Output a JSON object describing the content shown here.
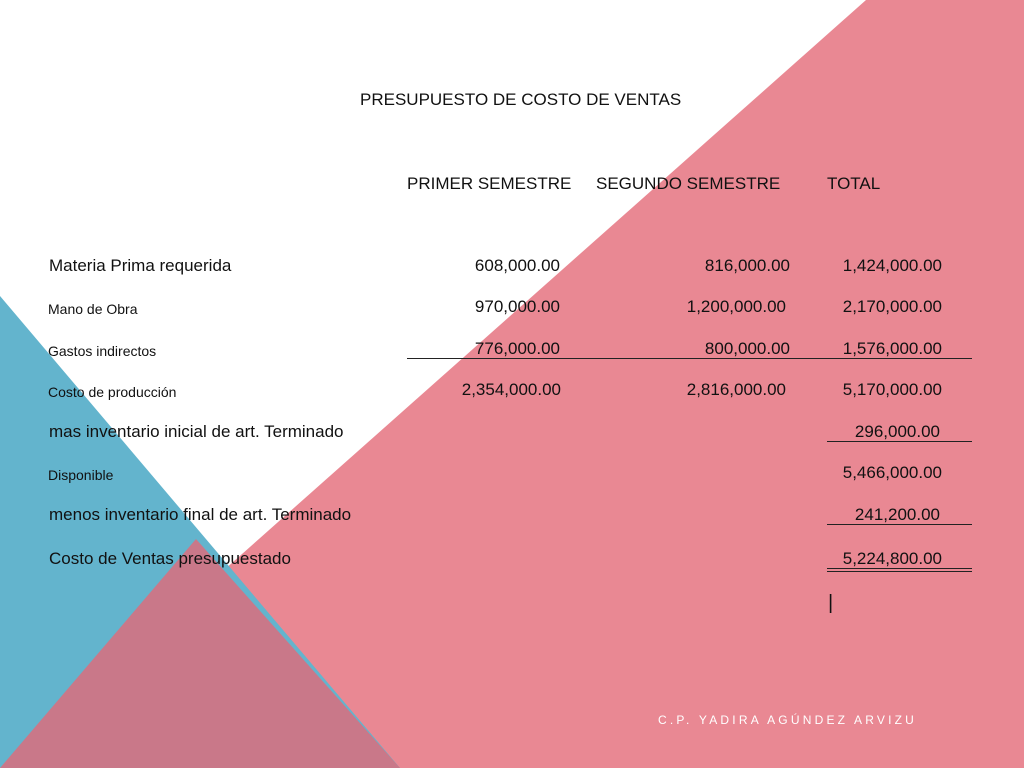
{
  "slide": {
    "title": "PRESUPUESTO DE COSTO DE VENTAS",
    "columns": [
      "PRIMER SEMESTRE",
      "SEGUNDO SEMESTRE",
      "TOTAL"
    ],
    "rows": [
      {
        "label": "Materia Prima requerida",
        "v1": "608,000.00",
        "v2": "816,000.00",
        "total": "1,424,000.00"
      },
      {
        "label": "Mano de Obra",
        "v1": "970,000.00",
        "v2": "1,200,000.00",
        "total": "2,170,000.00"
      },
      {
        "label": "Gastos indirectos",
        "v1": "776,000.00",
        "v2": "800,000.00",
        "total": "1,576,000.00"
      },
      {
        "label": "Costo de producción",
        "v1": "2,354,000.00",
        "v2": "2,816,000.00",
        "total": "5,170,000.00"
      },
      {
        "label": "mas inventario inicial de art. Terminado",
        "total": "296,000.00"
      },
      {
        "label": "Disponible",
        "total": "5,466,000.00"
      },
      {
        "label": "menos inventario final de art. Terminado",
        "total": "241,200.00"
      },
      {
        "label": "Costo de Ventas presupuestado",
        "total": "5,224,800.00"
      }
    ],
    "cursor": "|",
    "footer": "C.P. YADIRA AGÚNDEZ ARVIZU"
  },
  "colors": {
    "pink": "#e98893",
    "blue": "#63b4cd",
    "mauve": "#c97889"
  }
}
